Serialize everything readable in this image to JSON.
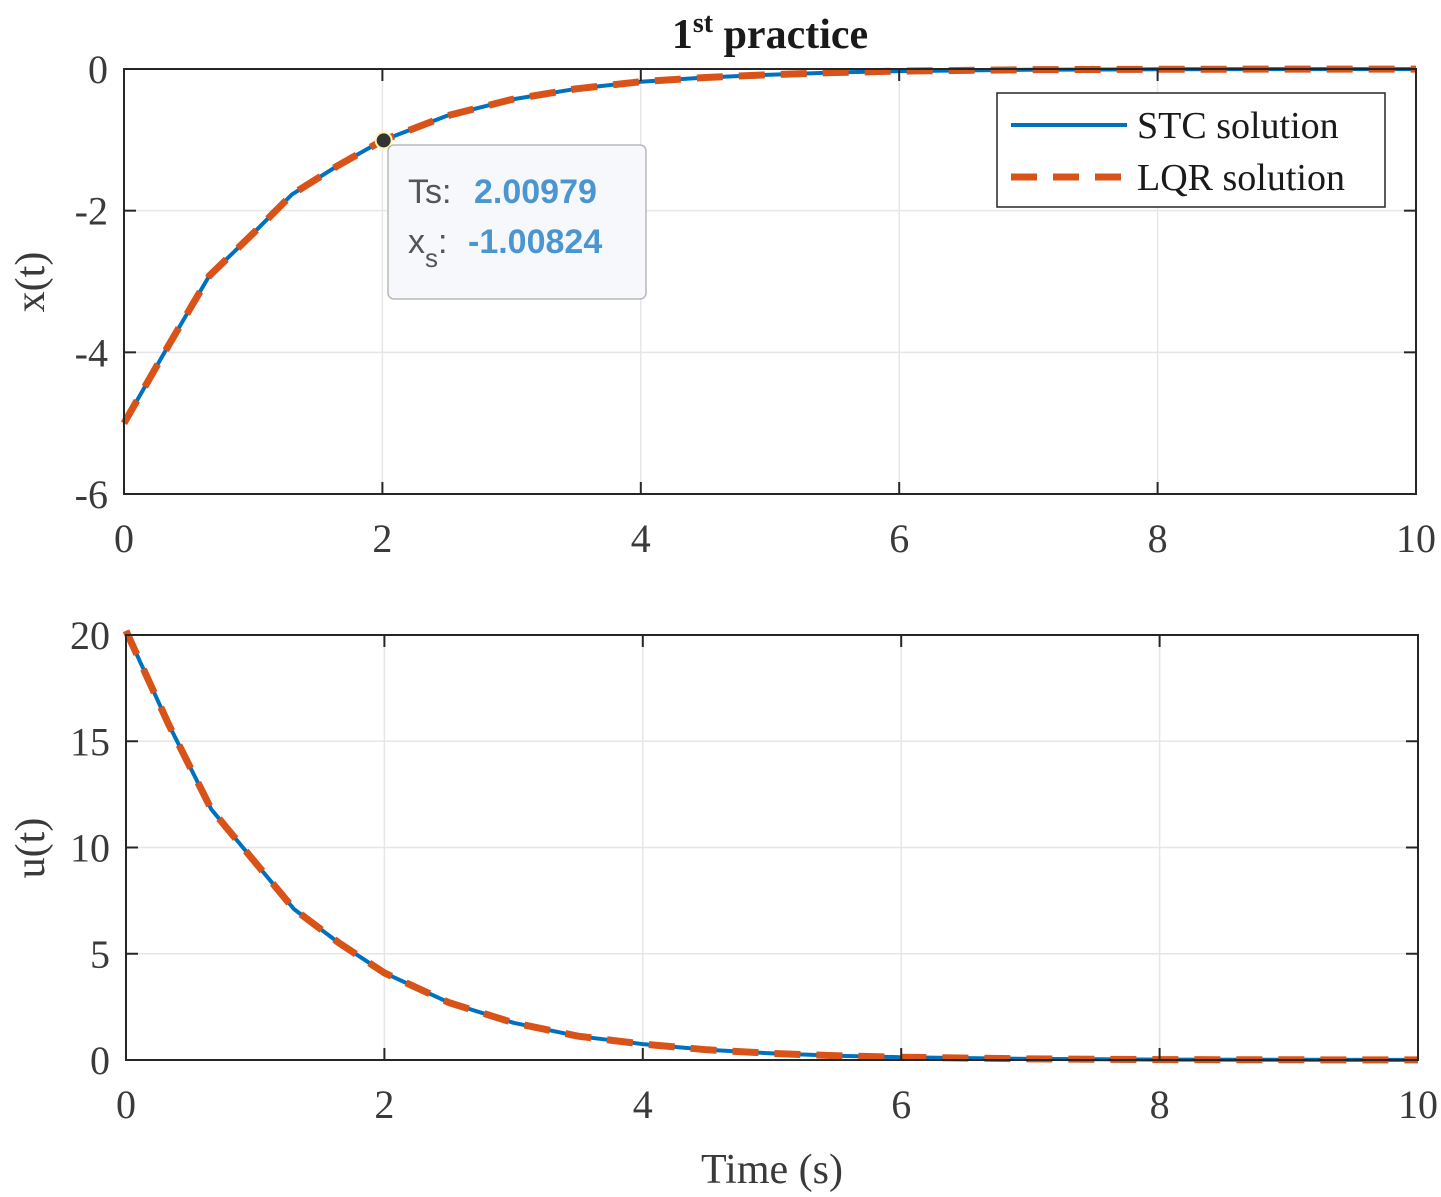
{
  "figure": {
    "title_main": "1",
    "title_sup": "st",
    "title_rest": "practice"
  },
  "chart_data": [
    {
      "type": "line",
      "title": "1st practice",
      "xlabel": "",
      "ylabel": "x(t)",
      "xlim": [
        0,
        10
      ],
      "ylim": [
        -6,
        0
      ],
      "xticks": [
        0,
        2,
        4,
        6,
        8,
        10
      ],
      "yticks": [
        0,
        -2,
        -4,
        -6
      ],
      "xtick_labels": [
        "0",
        "2",
        "4",
        "6",
        "8",
        "10"
      ],
      "ytick_labels": [
        "0",
        "-2",
        "-4",
        "-6"
      ],
      "grid": true,
      "legend": {
        "position": "top-right",
        "entries": [
          "STC solution",
          "LQR solution"
        ]
      },
      "x": [
        0,
        0.33,
        0.66,
        1.0,
        1.3,
        1.65,
        2.0,
        2.5,
        3.0,
        3.5,
        4.0,
        4.5,
        5.0,
        5.5,
        6.0,
        7.0,
        8.0,
        9.0,
        10.0
      ],
      "series": [
        {
          "name": "STC solution",
          "color": "#0072BD",
          "style": "solid",
          "values": [
            -5.0,
            -3.95,
            -2.92,
            -2.32,
            -1.77,
            -1.37,
            -1.01,
            -0.66,
            -0.43,
            -0.28,
            -0.18,
            -0.12,
            -0.08,
            -0.05,
            -0.03,
            -0.01,
            -0.004,
            -0.002,
            -0.001
          ]
        },
        {
          "name": "LQR solution",
          "color": "#D95319",
          "style": "dashed",
          "values": [
            -5.0,
            -3.95,
            -2.92,
            -2.32,
            -1.77,
            -1.37,
            -1.01,
            -0.66,
            -0.43,
            -0.28,
            -0.18,
            -0.12,
            -0.08,
            -0.05,
            -0.03,
            -0.01,
            -0.004,
            -0.002,
            -0.001
          ]
        }
      ],
      "datatip": {
        "x": 2.00979,
        "y": -1.00824,
        "x_name": "Ts",
        "y_name": "x",
        "y_sub": "s",
        "x_value": "2.00979",
        "y_value": "-1.00824",
        "value_color": "#4b96d1"
      }
    },
    {
      "type": "line",
      "xlabel": "Time (s)",
      "ylabel": "u(t)",
      "xlim": [
        0,
        10
      ],
      "ylim": [
        0,
        20
      ],
      "xticks": [
        0,
        2,
        4,
        6,
        8,
        10
      ],
      "yticks": [
        0,
        5,
        10,
        15,
        20
      ],
      "xtick_labels": [
        "0",
        "2",
        "4",
        "6",
        "8",
        "10"
      ],
      "ytick_labels": [
        "0",
        "5",
        "10",
        "15",
        "20"
      ],
      "grid": true,
      "x": [
        0,
        0.33,
        0.66,
        1.0,
        1.3,
        1.65,
        2.0,
        2.5,
        3.0,
        3.5,
        4.0,
        4.5,
        5.0,
        5.5,
        6.0,
        7.0,
        8.0,
        9.0,
        10.0
      ],
      "series": [
        {
          "name": "STC solution",
          "color": "#0072BD",
          "style": "solid",
          "values": [
            20.2,
            15.8,
            11.8,
            9.3,
            7.1,
            5.5,
            4.1,
            2.7,
            1.75,
            1.12,
            0.75,
            0.48,
            0.31,
            0.2,
            0.13,
            0.05,
            0.02,
            0.008,
            0.003
          ]
        },
        {
          "name": "LQR solution",
          "color": "#D95319",
          "style": "dashed",
          "values": [
            20.2,
            15.8,
            11.8,
            9.3,
            7.1,
            5.5,
            4.1,
            2.7,
            1.75,
            1.12,
            0.75,
            0.48,
            0.31,
            0.2,
            0.13,
            0.05,
            0.02,
            0.008,
            0.003
          ]
        }
      ]
    }
  ]
}
